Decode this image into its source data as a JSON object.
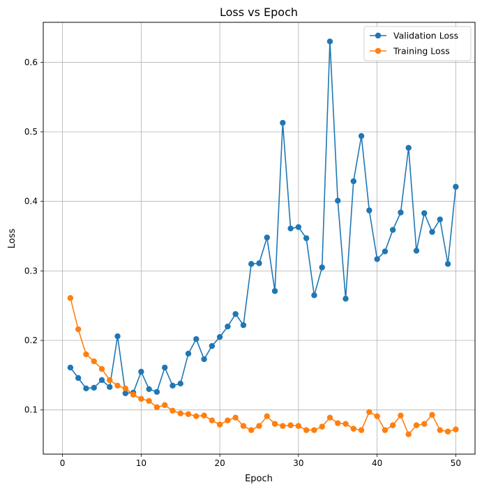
{
  "chart_data": {
    "type": "line",
    "title": "Loss vs Epoch",
    "xlabel": "Epoch",
    "ylabel": "Loss",
    "xlim": [
      -2.45,
      52.45
    ],
    "ylim": [
      0.0365,
      0.6575
    ],
    "xticks": [
      0,
      10,
      20,
      30,
      40,
      50
    ],
    "yticks": [
      0.1,
      0.2,
      0.3,
      0.4,
      0.5,
      0.6
    ],
    "grid": true,
    "legend_position": "top-right",
    "x": [
      1,
      2,
      3,
      4,
      5,
      6,
      7,
      8,
      9,
      10,
      11,
      12,
      13,
      14,
      15,
      16,
      17,
      18,
      19,
      20,
      21,
      22,
      23,
      24,
      25,
      26,
      27,
      28,
      29,
      30,
      31,
      32,
      33,
      34,
      35,
      36,
      37,
      38,
      39,
      40,
      41,
      42,
      43,
      44,
      45,
      46,
      47,
      48,
      49,
      50
    ],
    "series": [
      {
        "name": "Validation Loss",
        "color": "#1f77b4",
        "values": [
          0.161,
          0.146,
          0.131,
          0.132,
          0.143,
          0.133,
          0.206,
          0.124,
          0.125,
          0.155,
          0.13,
          0.126,
          0.161,
          0.135,
          0.138,
          0.181,
          0.202,
          0.173,
          0.192,
          0.205,
          0.22,
          0.238,
          0.222,
          0.31,
          0.311,
          0.348,
          0.271,
          0.513,
          0.361,
          0.363,
          0.347,
          0.265,
          0.305,
          0.63,
          0.401,
          0.26,
          0.429,
          0.494,
          0.387,
          0.317,
          0.328,
          0.359,
          0.384,
          0.477,
          0.329,
          0.383,
          0.356,
          0.374,
          0.31,
          0.421
        ]
      },
      {
        "name": "Training Loss",
        "color": "#ff7f0e",
        "values": [
          0.261,
          0.216,
          0.18,
          0.17,
          0.159,
          0.143,
          0.135,
          0.131,
          0.122,
          0.116,
          0.113,
          0.104,
          0.107,
          0.099,
          0.095,
          0.094,
          0.091,
          0.092,
          0.085,
          0.079,
          0.085,
          0.089,
          0.077,
          0.071,
          0.077,
          0.091,
          0.08,
          0.077,
          0.078,
          0.077,
          0.071,
          0.071,
          0.076,
          0.089,
          0.081,
          0.08,
          0.073,
          0.071,
          0.097,
          0.091,
          0.071,
          0.078,
          0.092,
          0.065,
          0.078,
          0.08,
          0.093,
          0.071,
          0.069,
          0.072
        ]
      }
    ]
  }
}
